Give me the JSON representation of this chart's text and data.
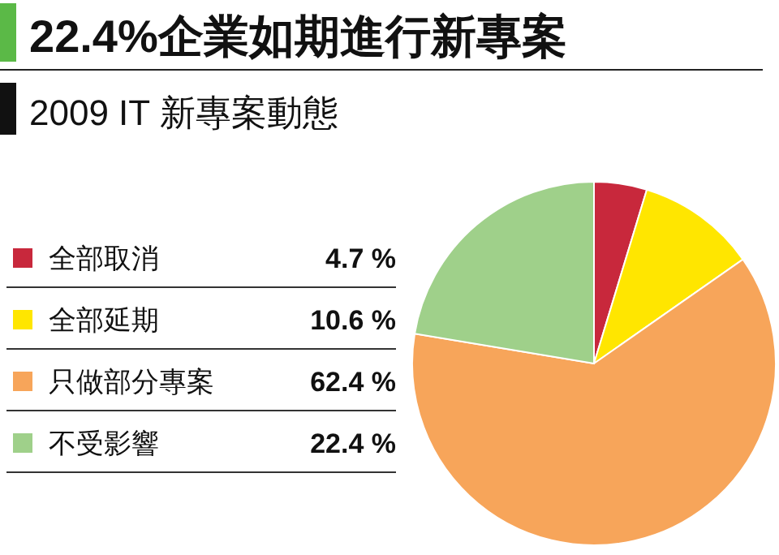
{
  "chart_data": {
    "type": "pie",
    "title": "22.4%企業如期進行新專案",
    "subtitle": "2009 IT 新專案動態",
    "categories": [
      "全部取消",
      "全部延期",
      "只做部分專案",
      "不受影響"
    ],
    "values": [
      4.7,
      10.6,
      62.4,
      22.4
    ],
    "colors": [
      "#c8283c",
      "#ffe600",
      "#f7a55a",
      "#9fd08a"
    ],
    "value_labels": [
      "4.7 %",
      "10.6 %",
      "62.4 %",
      "22.4 %"
    ],
    "legend": "left"
  }
}
